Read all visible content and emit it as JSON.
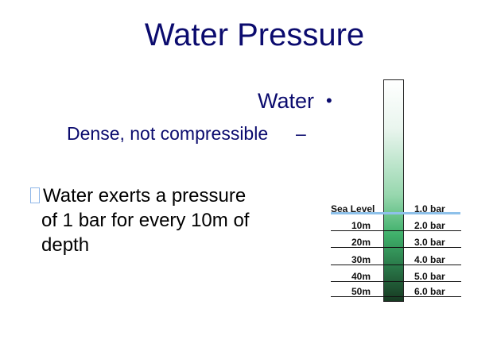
{
  "slide": {
    "title": "Water Pressure",
    "water_heading": "Water",
    "water_bullet": "•",
    "dense_text": "Dense, not compressible",
    "dense_dash": "–",
    "body_line1": "Water exerts a pressure",
    "body_line2": "of 1 bar for every 10m of",
    "body_line3": "depth"
  },
  "diagram": {
    "rows": [
      {
        "depth": "Sea Level",
        "pressure": "1.0 bar"
      },
      {
        "depth": "10m",
        "pressure": "2.0 bar"
      },
      {
        "depth": "20m",
        "pressure": "3.0 bar"
      },
      {
        "depth": "30m",
        "pressure": "4.0 bar"
      },
      {
        "depth": "40m",
        "pressure": "5.0 bar"
      },
      {
        "depth": "50m",
        "pressure": "6.0 bar"
      }
    ],
    "colors": {
      "sea_level_line": "#8ec1ea",
      "water_dark": "#173a22",
      "water_mid": "#3fb06a"
    }
  }
}
